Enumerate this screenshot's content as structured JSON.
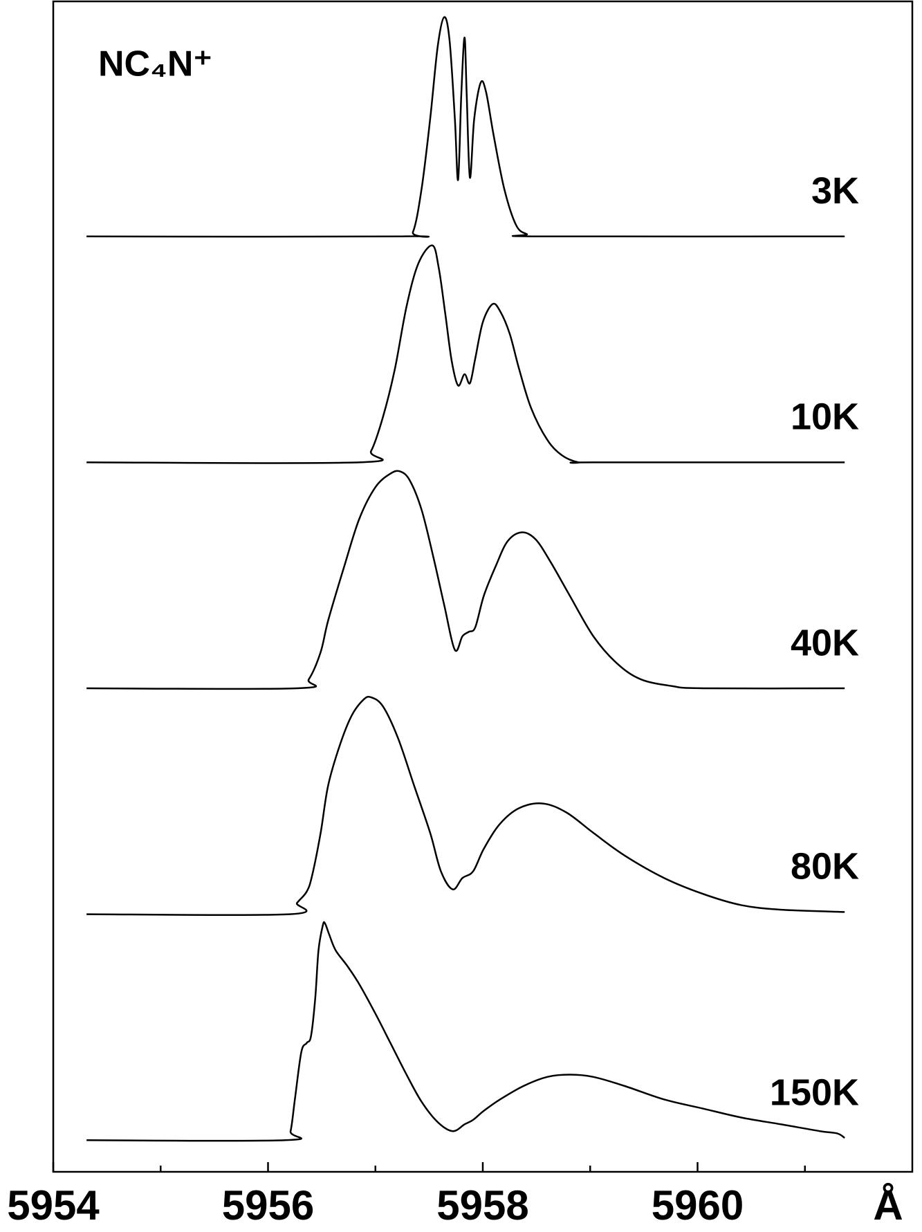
{
  "chart_data": {
    "type": "line",
    "title": "NC₄N⁺",
    "x_unit": "Å",
    "xlim": [
      5954,
      5962
    ],
    "xticks": [
      5954,
      5956,
      5958,
      5960
    ],
    "x_minor_ticks": [
      5955,
      5957,
      5959,
      5961
    ],
    "ylim": [
      0,
      5.18
    ],
    "series": [
      {
        "name": "3K",
        "color": "#000000",
        "x": [
          5954.31,
          5957.25,
          5957.35,
          5957.43,
          5957.51,
          5957.58,
          5957.64,
          5957.69,
          5957.74,
          5957.77,
          5957.8,
          5957.83,
          5957.85,
          5957.88,
          5957.92,
          5957.98,
          5958.03,
          5958.1,
          5958.2,
          5958.31,
          5958.41,
          5958.52,
          5961.37
        ],
        "values": [
          4.14,
          4.14,
          4.16,
          4.35,
          4.66,
          4.98,
          5.11,
          5.01,
          4.66,
          4.39,
          4.77,
          5.02,
          4.77,
          4.4,
          4.66,
          4.82,
          4.78,
          4.59,
          4.35,
          4.19,
          4.15,
          4.14,
          4.14
        ]
      },
      {
        "name": "10K",
        "color": "#000000",
        "x": [
          5954.31,
          5956.85,
          5956.96,
          5957.07,
          5957.18,
          5957.29,
          5957.4,
          5957.53,
          5957.59,
          5957.65,
          5957.71,
          5957.77,
          5957.83,
          5957.88,
          5957.93,
          5958.0,
          5958.09,
          5958.16,
          5958.25,
          5958.34,
          5958.45,
          5958.6,
          5958.74,
          5958.89,
          5959.03,
          5961.37
        ],
        "values": [
          3.14,
          3.14,
          3.19,
          3.34,
          3.55,
          3.83,
          4.02,
          4.1,
          4.0,
          3.8,
          3.59,
          3.48,
          3.53,
          3.49,
          3.6,
          3.76,
          3.84,
          3.81,
          3.71,
          3.55,
          3.38,
          3.24,
          3.17,
          3.14,
          3.14,
          3.14
        ]
      },
      {
        "name": "40K",
        "color": "#000000",
        "x": [
          5954.31,
          5956.27,
          5956.38,
          5956.49,
          5956.56,
          5956.71,
          5956.85,
          5957.0,
          5957.14,
          5957.23,
          5957.32,
          5957.43,
          5957.54,
          5957.64,
          5957.74,
          5957.81,
          5957.87,
          5957.93,
          5958.01,
          5958.12,
          5958.23,
          5958.36,
          5958.49,
          5958.63,
          5958.81,
          5959.03,
          5959.25,
          5959.47,
          5959.76,
          5960.05,
          5961.37
        ],
        "values": [
          2.14,
          2.14,
          2.18,
          2.3,
          2.44,
          2.68,
          2.89,
          3.03,
          3.09,
          3.1,
          3.06,
          2.93,
          2.72,
          2.51,
          2.31,
          2.37,
          2.39,
          2.41,
          2.55,
          2.68,
          2.79,
          2.83,
          2.8,
          2.7,
          2.55,
          2.37,
          2.25,
          2.18,
          2.15,
          2.14,
          2.14
        ]
      },
      {
        "name": "80K",
        "color": "#000000",
        "x": [
          5954.31,
          5956.2,
          5956.27,
          5956.36,
          5956.41,
          5956.49,
          5956.56,
          5956.67,
          5956.78,
          5956.89,
          5956.96,
          5957.07,
          5957.21,
          5957.36,
          5957.51,
          5957.61,
          5957.72,
          5957.81,
          5957.91,
          5958.01,
          5958.16,
          5958.34,
          5958.56,
          5958.78,
          5959.03,
          5959.32,
          5959.69,
          5960.05,
          5960.41,
          5960.78,
          5961.37
        ],
        "values": [
          1.14,
          1.14,
          1.19,
          1.24,
          1.31,
          1.5,
          1.71,
          1.89,
          2.02,
          2.09,
          2.1,
          2.06,
          1.92,
          1.71,
          1.5,
          1.33,
          1.25,
          1.3,
          1.33,
          1.43,
          1.54,
          1.61,
          1.63,
          1.59,
          1.5,
          1.4,
          1.3,
          1.23,
          1.18,
          1.16,
          1.15
        ]
      },
      {
        "name": "150K",
        "color": "#000000",
        "x": [
          5954.31,
          5956.16,
          5956.21,
          5956.25,
          5956.31,
          5956.36,
          5956.4,
          5956.44,
          5956.47,
          5956.51,
          5956.53,
          5956.57,
          5956.63,
          5956.74,
          5956.85,
          5957.0,
          5957.14,
          5957.29,
          5957.43,
          5957.58,
          5957.72,
          5957.83,
          5957.91,
          5958.01,
          5958.16,
          5958.38,
          5958.6,
          5958.81,
          5959.03,
          5959.32,
          5959.69,
          5960.05,
          5960.41,
          5960.78,
          5961.14,
          5961.3,
          5961.37
        ],
        "values": [
          0.14,
          0.14,
          0.18,
          0.32,
          0.53,
          0.57,
          0.6,
          0.77,
          0.98,
          1.09,
          1.1,
          1.05,
          0.98,
          0.91,
          0.83,
          0.7,
          0.57,
          0.43,
          0.31,
          0.22,
          0.18,
          0.21,
          0.23,
          0.27,
          0.32,
          0.38,
          0.42,
          0.43,
          0.42,
          0.38,
          0.32,
          0.28,
          0.24,
          0.21,
          0.18,
          0.17,
          0.15
        ]
      }
    ]
  }
}
